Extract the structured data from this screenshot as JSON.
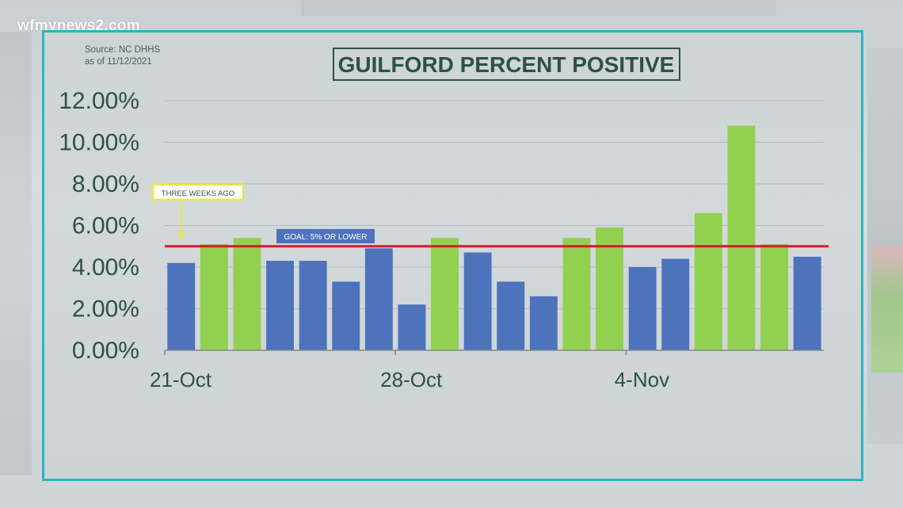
{
  "logo": "wfmynews2.com",
  "source": {
    "line1": "Source: NC DHHS",
    "line2": "as of 11/12/2021"
  },
  "colors": {
    "frame": "#27b7c2",
    "bar_blue": "#4c73bb",
    "bar_green": "#92d050",
    "goal_line": "#d9182a",
    "highlight_box": "#e6e84a",
    "text": "#2f4f4f"
  },
  "chart_data": {
    "type": "bar",
    "title": "GUILFORD PERCENT POSITIVE",
    "xlabel": "",
    "ylabel": "",
    "ylim": [
      0,
      12
    ],
    "y_ticks": [
      "0.00%",
      "2.00%",
      "4.00%",
      "6.00%",
      "8.00%",
      "10.00%",
      "12.00%"
    ],
    "y_tick_values": [
      0,
      2,
      4,
      6,
      8,
      10,
      12
    ],
    "x_tick_labels": [
      {
        "label": "21-Oct",
        "index": 0
      },
      {
        "label": "28-Oct",
        "index": 7
      },
      {
        "label": "4-Nov",
        "index": 14
      }
    ],
    "grid": true,
    "values": [
      4.2,
      5.1,
      5.4,
      4.3,
      4.3,
      3.3,
      4.9,
      2.2,
      5.4,
      4.7,
      3.3,
      2.6,
      5.4,
      5.9,
      4.0,
      4.4,
      6.6,
      10.8,
      5.1,
      4.5
    ],
    "bar_colors": [
      "blue",
      "green",
      "green",
      "blue",
      "blue",
      "blue",
      "blue",
      "blue",
      "green",
      "blue",
      "blue",
      "blue",
      "green",
      "green",
      "blue",
      "blue",
      "green",
      "green",
      "green",
      "blue"
    ],
    "goal": {
      "value": 5,
      "label": "GOAL: 5% OR LOWER"
    },
    "annotation": {
      "label": "THREE WEEKS AGO",
      "index": 0
    }
  }
}
